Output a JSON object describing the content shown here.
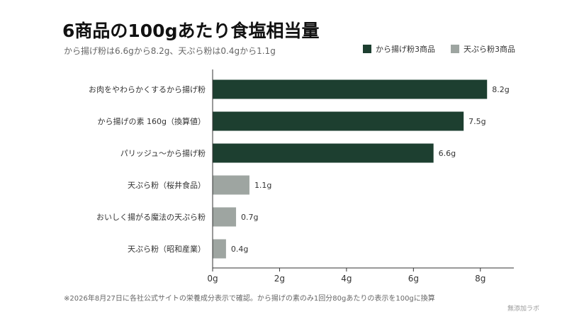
{
  "title": "6商品の100gあたり食塩相当量",
  "subtitle": "から揚げ粉は6.6gから8.2g、天ぷら粉は0.4gから1.1g",
  "footnote": "※2026年8月27日に各社公式サイトの栄養成分表示で確認。から揚げの素のみ1回分80gあたりの表示を100gに換算",
  "credit": "無添加ラボ",
  "colors": {
    "karaage": "#1d3f30",
    "tempura": "#9ea5a1",
    "axis": "#333333"
  },
  "chart_data": {
    "type": "bar",
    "orientation": "horizontal",
    "categories": [
      "お肉をやわらかくするから揚げ粉",
      "から揚げの素 160g（換算値）",
      "パリッジュ〜から揚げ粉",
      "天ぷら粉（桜井食品）",
      "おいしく揚がる魔法の天ぷら粉",
      "天ぷら粉（昭和産業）"
    ],
    "values": [
      8.2,
      7.5,
      6.6,
      1.1,
      0.7,
      0.4
    ],
    "value_labels": [
      "8.2g",
      "7.5g",
      "6.6g",
      "1.1g",
      "0.7g",
      "0.4g"
    ],
    "groups": [
      "karaage",
      "karaage",
      "karaage",
      "tempura",
      "tempura",
      "tempura"
    ],
    "legend": [
      {
        "key": "karaage",
        "label": "から揚げ粉3商品"
      },
      {
        "key": "tempura",
        "label": "天ぷら粉3商品"
      }
    ],
    "legend_position": "top-right",
    "xlim": [
      0,
      9
    ],
    "xticks": [
      0,
      2,
      4,
      6,
      8
    ],
    "xtick_labels": [
      "0g",
      "2g",
      "4g",
      "6g",
      "8g"
    ],
    "grid": false
  }
}
